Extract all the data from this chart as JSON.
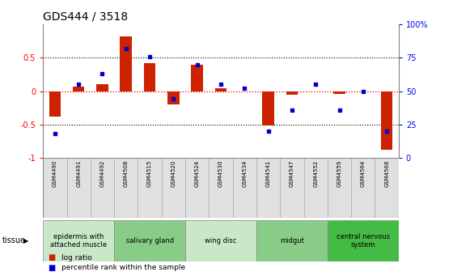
{
  "title": "GDS444 / 3518",
  "samples": [
    "GSM4490",
    "GSM4491",
    "GSM4492",
    "GSM4508",
    "GSM4515",
    "GSM4520",
    "GSM4524",
    "GSM4530",
    "GSM4534",
    "GSM4541",
    "GSM4547",
    "GSM4552",
    "GSM4559",
    "GSM4564",
    "GSM4568"
  ],
  "log_ratio": [
    -0.38,
    0.07,
    0.1,
    0.82,
    0.42,
    -0.2,
    0.4,
    0.04,
    0.0,
    -0.52,
    -0.05,
    0.0,
    -0.04,
    0.0,
    -0.88
  ],
  "percentile": [
    18,
    55,
    63,
    82,
    76,
    44,
    70,
    55,
    52,
    20,
    36,
    55,
    36,
    50,
    20
  ],
  "tissue_groups": [
    {
      "label": "epidermis with\nattached muscle",
      "start": 0,
      "end": 2,
      "color": "#c8e8c8"
    },
    {
      "label": "salivary gland",
      "start": 3,
      "end": 5,
      "color": "#88cc88"
    },
    {
      "label": "wing disc",
      "start": 6,
      "end": 8,
      "color": "#c8e8c8"
    },
    {
      "label": "midgut",
      "start": 9,
      "end": 11,
      "color": "#88cc88"
    },
    {
      "label": "central nervous\nsystem",
      "start": 12,
      "end": 14,
      "color": "#44bb44"
    }
  ],
  "ylim": [
    -1,
    1
  ],
  "yticks_left": [
    -1,
    -0.5,
    0,
    0.5
  ],
  "ytick_labels_left": [
    "-1",
    "-0.5",
    "0",
    "0.5"
  ],
  "yticks_right": [
    0,
    25,
    50,
    75,
    100
  ],
  "ytick_labels_right": [
    "0",
    "25",
    "50",
    "75",
    "100%"
  ],
  "hlines": [
    0.5,
    -0.5
  ],
  "bar_color": "#cc2200",
  "dot_color": "#0000cc",
  "background_color": "#ffffff",
  "bar_width": 0.5
}
